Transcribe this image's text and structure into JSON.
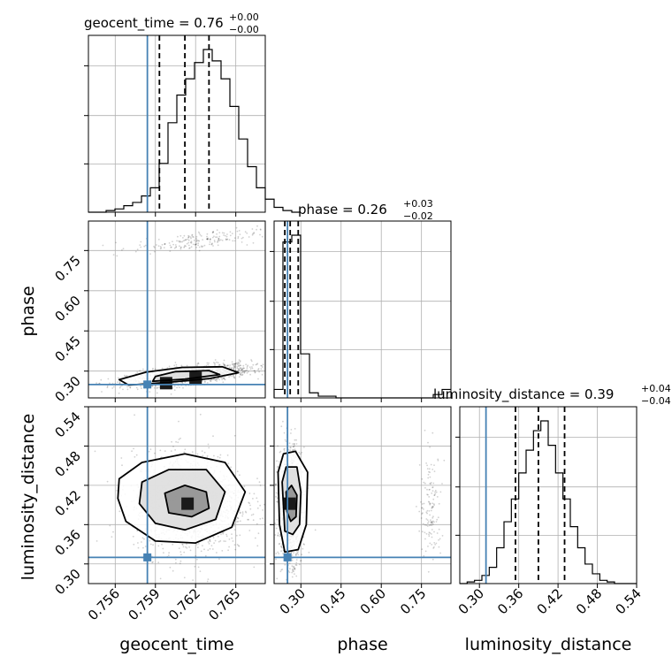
{
  "chart_data": {
    "type": "corner",
    "parameters": [
      {
        "name": "geocent_time",
        "axis_label": "geocent_time",
        "title": {
          "prefix": "geocent_time = 0.76",
          "upper": "+0.00",
          "lower": "−0.00"
        },
        "range": [
          0.754,
          0.7672
        ],
        "ticks": [
          0.756,
          0.759,
          0.762,
          0.765
        ],
        "tick_labels": [
          "0.756",
          "0.759",
          "0.762",
          "0.765"
        ],
        "truth": 0.7584,
        "quantiles": [
          0.7593,
          0.7612,
          0.763
        ],
        "hist_edges_start": 0.754,
        "hist_bin_width": 0.00066,
        "hist_counts": [
          0,
          0,
          1,
          2,
          4,
          6,
          10,
          15,
          30,
          55,
          72,
          82,
          92,
          100,
          93,
          82,
          65,
          45,
          28,
          15,
          8,
          3,
          1,
          0
        ]
      },
      {
        "name": "phase",
        "axis_label": "phase",
        "title": {
          "prefix": "phase = 0.26",
          "upper": "+0.03",
          "lower": "−0.02"
        },
        "range": [
          0.2,
          0.86
        ],
        "ticks": [
          0.3,
          0.45,
          0.6,
          0.75
        ],
        "tick_labels": [
          "0.30",
          "0.45",
          "0.60",
          "0.75"
        ],
        "truth": 0.25,
        "quantiles": [
          0.24,
          0.26,
          0.29
        ],
        "hist_edges_start": 0.2,
        "hist_bin_width": 0.033,
        "hist_counts": [
          5,
          92,
          96,
          26,
          3,
          1,
          1,
          0,
          0,
          0,
          0,
          0,
          0,
          0,
          0,
          0,
          0,
          0,
          2,
          5
        ]
      },
      {
        "name": "luminosity_distance",
        "axis_label": "luminosity_distance",
        "title": {
          "prefix": "luminosity_distance = 0.39",
          "upper": "+0.04",
          "lower": "−0.04"
        },
        "range": [
          0.27,
          0.54
        ],
        "ticks": [
          0.3,
          0.36,
          0.42,
          0.48,
          0.54
        ],
        "tick_labels": [
          "0.30",
          "0.36",
          "0.42",
          "0.48",
          "0.54"
        ],
        "truth": 0.31,
        "quantiles": [
          0.355,
          0.39,
          0.43
        ],
        "hist_edges_start": 0.27,
        "hist_bin_width": 0.01125,
        "hist_counts": [
          0,
          1,
          2,
          5,
          10,
          22,
          38,
          52,
          68,
          82,
          94,
          100,
          85,
          68,
          52,
          35,
          22,
          12,
          6,
          2,
          1,
          0,
          0,
          0
        ]
      }
    ],
    "pair_plots": [
      {
        "x": "geocent_time",
        "y": "phase",
        "density_modes": [
          {
            "cx": 0.7615,
            "cy": 0.285,
            "sx": 0.0023,
            "sy": 0.02,
            "rho": 0.6,
            "weight": 1.0
          },
          {
            "cx": 0.762,
            "cy": 0.785,
            "sx": 0.0023,
            "sy": 0.02,
            "rho": 0.6,
            "weight": 0.14
          }
        ],
        "contours": [
          [
            [
              0.757,
              0.248
            ],
            [
              0.76,
              0.258
            ],
            [
              0.763,
              0.272
            ],
            [
              0.7652,
              0.294
            ],
            [
              0.764,
              0.316
            ],
            [
              0.761,
              0.314
            ],
            [
              0.7583,
              0.296
            ],
            [
              0.7563,
              0.268
            ]
          ],
          [
            [
              0.7588,
              0.262
            ],
            [
              0.7612,
              0.27
            ],
            [
              0.7638,
              0.287
            ],
            [
              0.763,
              0.302
            ],
            [
              0.7605,
              0.298
            ],
            [
              0.759,
              0.28
            ]
          ]
        ],
        "dark_cells": [
          [
            0.7598,
            0.255
          ],
          [
            0.762,
            0.275
          ]
        ]
      },
      {
        "x": "geocent_time",
        "y": "luminosity_distance",
        "density_modes": [
          {
            "cx": 0.7616,
            "cy": 0.392,
            "sx": 0.0021,
            "sy": 0.038,
            "rho": 0.0,
            "weight": 1.0
          }
        ],
        "contours": [
          [
            [
              0.7563,
              0.43
            ],
            [
              0.758,
              0.455
            ],
            [
              0.7612,
              0.468
            ],
            [
              0.7642,
              0.455
            ],
            [
              0.7657,
              0.41
            ],
            [
              0.7647,
              0.356
            ],
            [
              0.762,
              0.332
            ],
            [
              0.759,
              0.335
            ],
            [
              0.7568,
              0.365
            ],
            [
              0.7562,
              0.4
            ]
          ],
          [
            [
              0.758,
              0.425
            ],
            [
              0.76,
              0.444
            ],
            [
              0.7628,
              0.444
            ],
            [
              0.7642,
              0.41
            ],
            [
              0.7635,
              0.368
            ],
            [
              0.7612,
              0.352
            ],
            [
              0.759,
              0.362
            ],
            [
              0.7578,
              0.392
            ]
          ],
          [
            [
              0.7597,
              0.408
            ],
            [
              0.7612,
              0.42
            ],
            [
              0.7628,
              0.41
            ],
            [
              0.763,
              0.385
            ],
            [
              0.7617,
              0.372
            ],
            [
              0.76,
              0.378
            ]
          ]
        ],
        "dark_cells": [
          [
            0.7614,
            0.392
          ]
        ]
      },
      {
        "x": "phase",
        "y": "luminosity_distance",
        "density_modes": [
          {
            "cx": 0.26,
            "cy": 0.39,
            "sx": 0.022,
            "sy": 0.042,
            "rho": 0.0,
            "weight": 1.0
          },
          {
            "cx": 0.785,
            "cy": 0.385,
            "sx": 0.02,
            "sy": 0.042,
            "rho": 0.0,
            "weight": 0.1
          }
        ],
        "contours": [
          [
            [
              0.215,
              0.44
            ],
            [
              0.235,
              0.468
            ],
            [
              0.28,
              0.472
            ],
            [
              0.325,
              0.44
            ],
            [
              0.32,
              0.36
            ],
            [
              0.29,
              0.322
            ],
            [
              0.24,
              0.318
            ],
            [
              0.22,
              0.36
            ]
          ],
          [
            [
              0.23,
              0.425
            ],
            [
              0.245,
              0.448
            ],
            [
              0.285,
              0.448
            ],
            [
              0.3,
              0.41
            ],
            [
              0.295,
              0.36
            ],
            [
              0.27,
              0.345
            ],
            [
              0.24,
              0.35
            ]
          ],
          [
            [
              0.245,
              0.41
            ],
            [
              0.265,
              0.42
            ],
            [
              0.285,
              0.405
            ],
            [
              0.282,
              0.372
            ],
            [
              0.262,
              0.365
            ],
            [
              0.248,
              0.38
            ]
          ]
        ],
        "dark_cells": [
          [
            0.258,
            0.392
          ]
        ]
      }
    ],
    "colors": {
      "truth": "#4682b4",
      "contour": "#000000",
      "hist": "#000000",
      "grid": "#b0b0b0"
    },
    "grid": true
  }
}
